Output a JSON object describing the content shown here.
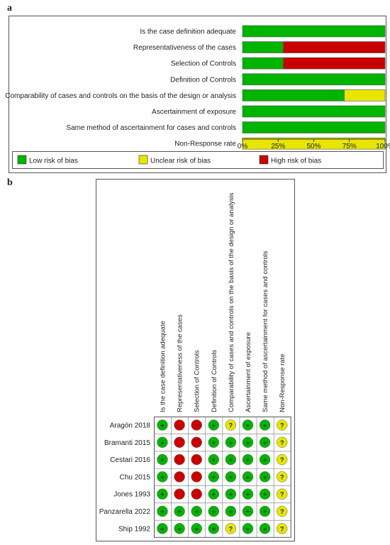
{
  "chart_data": [
    {
      "panel": "a",
      "type": "bar",
      "stacked": true,
      "orientation": "horizontal",
      "categories": [
        "Is the case definition adequate",
        "Representativeness of the cases",
        "Selection of Controls",
        "Definition of Controls",
        "Comparability of cases and controls on the basis of the design or analysis",
        "Ascertainment of exposure",
        "Same method of ascertainment for cases and controls",
        "Non-Response rate"
      ],
      "series": [
        {
          "name": "Low risk of bias",
          "color": "#00b400",
          "values": [
            100,
            28.6,
            28.6,
            100,
            71.4,
            100,
            100,
            0
          ]
        },
        {
          "name": "Unclear risk of bias",
          "color": "#e6e600",
          "values": [
            0,
            0,
            0,
            0,
            28.6,
            0,
            0,
            100
          ]
        },
        {
          "name": "High risk of bias",
          "color": "#c80000",
          "values": [
            0,
            71.4,
            71.4,
            0,
            0,
            0,
            0,
            0
          ]
        }
      ],
      "x_ticks": [
        "0%",
        "25%",
        "50%",
        "75%",
        "100%"
      ],
      "xlim": [
        0,
        100
      ],
      "legend_position": "bottom",
      "grid": false
    },
    {
      "panel": "b",
      "type": "table",
      "columns": [
        "Is the case definition adequate",
        "Representativeness of the cases",
        "Selection of Controls",
        "Definition of Controls",
        "Comparability of cases and controls on the basis of the design or analysis",
        "Ascertainment of exposure",
        "Same method of ascertainment for cases and controls",
        "Non-Response rate"
      ],
      "rows": [
        {
          "study": "Aragón 2018",
          "ratings": [
            "+",
            "-",
            "-",
            "+",
            "?",
            "+",
            "+",
            "?"
          ]
        },
        {
          "study": "Bramanti 2015",
          "ratings": [
            "+",
            "-",
            "-",
            "+",
            "+",
            "+",
            "+",
            "?"
          ]
        },
        {
          "study": "Cestari  2016",
          "ratings": [
            "+",
            "-",
            "-",
            "+",
            "+",
            "+",
            "+",
            "?"
          ]
        },
        {
          "study": "Chu 2015",
          "ratings": [
            "+",
            "-",
            "-",
            "+",
            "+",
            "+",
            "+",
            "?"
          ]
        },
        {
          "study": "Jones 1993",
          "ratings": [
            "+",
            "-",
            "-",
            "+",
            "+",
            "+",
            "+",
            "?"
          ]
        },
        {
          "study": "Panzarella 2022",
          "ratings": [
            "+",
            "+",
            "+",
            "+",
            "+",
            "+",
            "+",
            "?"
          ]
        },
        {
          "study": "Ship 1992",
          "ratings": [
            "+",
            "+",
            "+",
            "+",
            "?",
            "+",
            "+",
            "?"
          ]
        }
      ],
      "rating_colors": {
        "+": "#00b400",
        "?": "#e6e600",
        "-": "#c80000"
      }
    }
  ],
  "panel_labels": {
    "a": "a",
    "b": "b"
  }
}
